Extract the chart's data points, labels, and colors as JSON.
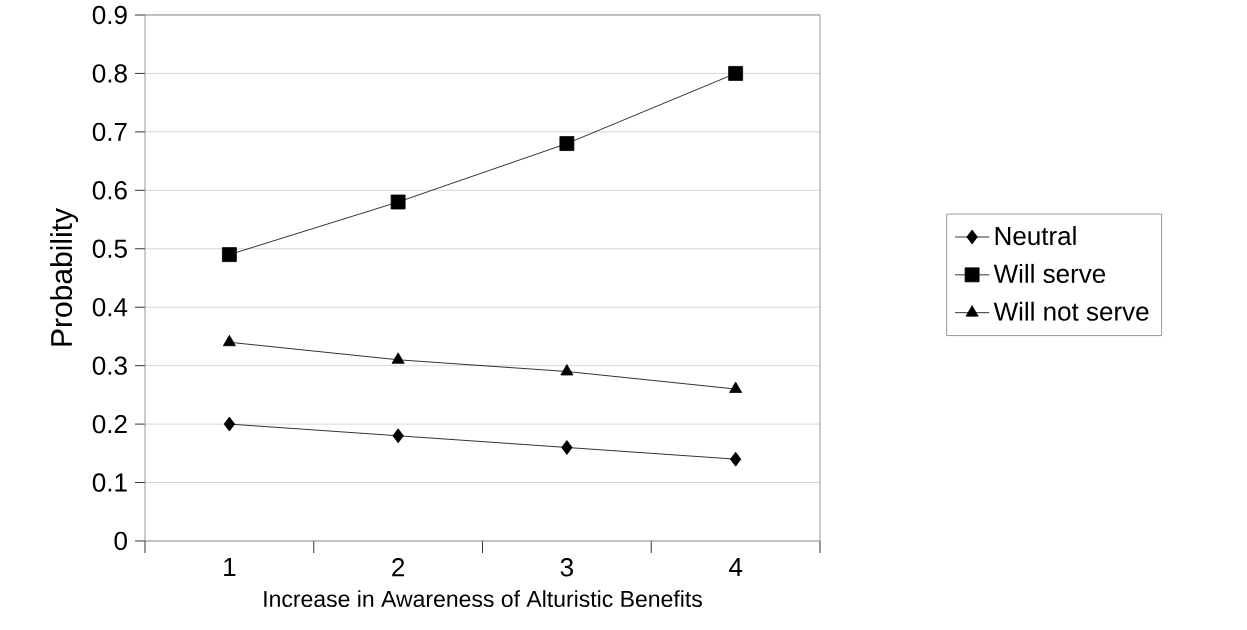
{
  "chart_data": {
    "type": "line",
    "xlabel": "Increase in Awareness of Alturistic Benefits",
    "ylabel": "Probability",
    "categories": [
      "1",
      "2",
      "3",
      "4"
    ],
    "series": [
      {
        "name": "Neutral",
        "color": "#000000",
        "marker": "diamond",
        "values": [
          0.2,
          0.18,
          0.16,
          0.14
        ]
      },
      {
        "name": "Will serve",
        "color": "#000000",
        "marker": "square",
        "values": [
          0.49,
          0.58,
          0.68,
          0.8
        ]
      },
      {
        "name": "Will not serve",
        "color": "#000000",
        "marker": "triangle",
        "values": [
          0.34,
          0.31,
          0.29,
          0.26
        ]
      }
    ],
    "ylim": [
      0,
      0.9
    ],
    "yticks": [
      0,
      0.1,
      0.2,
      0.3,
      0.4,
      0.5,
      0.6,
      0.7,
      0.8,
      0.9
    ],
    "grid": "y",
    "legend": "right",
    "line_style": "solid"
  }
}
